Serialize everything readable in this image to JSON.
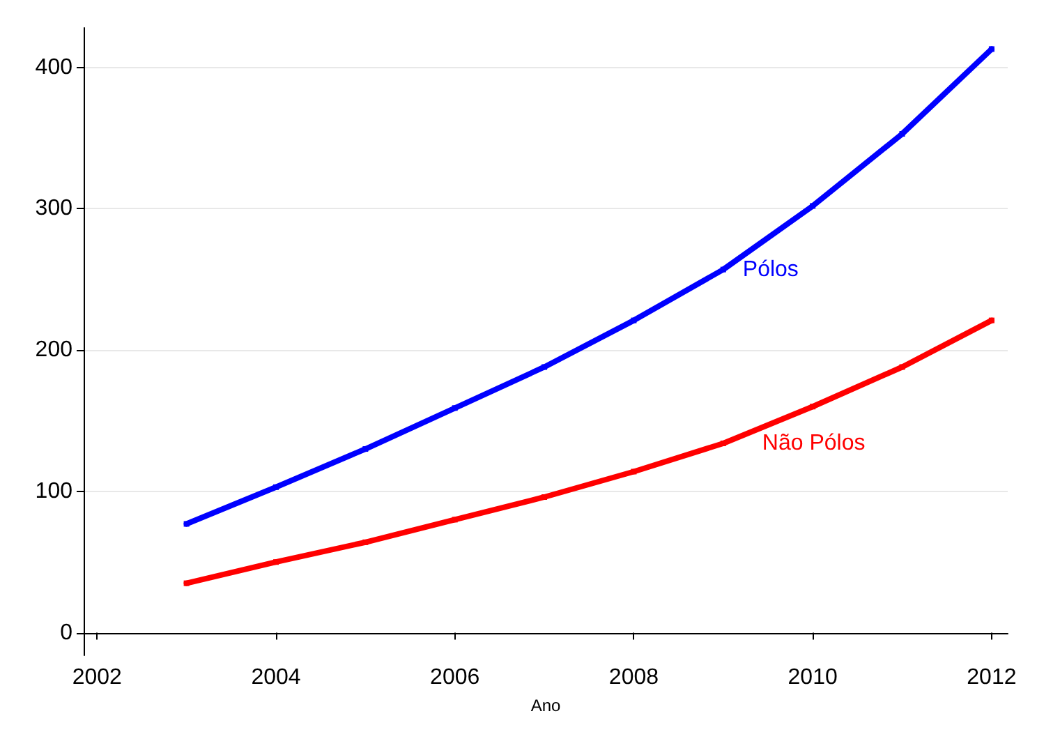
{
  "chart_data": {
    "type": "line",
    "xlabel": "Ano",
    "x": [
      2003,
      2004,
      2005,
      2006,
      2007,
      2008,
      2009,
      2010,
      2011,
      2012
    ],
    "series": [
      {
        "name": "Pólos",
        "color": "#0000ff",
        "values": [
          77,
          103,
          130,
          159,
          188,
          221,
          257,
          302,
          353,
          413
        ]
      },
      {
        "name": "Não Pólos",
        "color": "#ff0000",
        "values": [
          35,
          50,
          64,
          80,
          96,
          114,
          134,
          160,
          188,
          221
        ]
      }
    ],
    "xlim": [
      2001.85,
      2012.18
    ],
    "xticks": [
      2002,
      2004,
      2006,
      2008,
      2010,
      2012
    ],
    "ylim": [
      -16,
      428
    ],
    "yticks": [
      0,
      100,
      200,
      300,
      400
    ],
    "grid": "y",
    "legend": false,
    "marker": "square",
    "line_style": "solid"
  }
}
